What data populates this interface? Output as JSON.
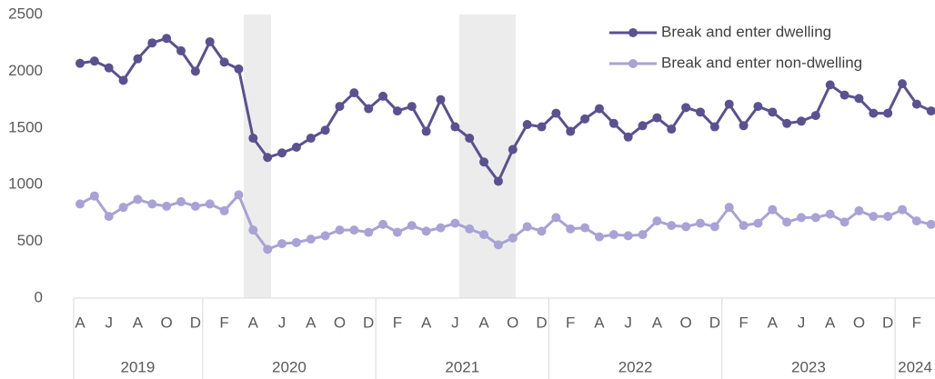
{
  "chart_data": {
    "type": "line",
    "categories": [
      "A",
      null,
      "J",
      null,
      "A",
      null,
      "O",
      null,
      "D",
      null,
      "F",
      null,
      "A",
      null,
      "J",
      null,
      "A",
      null,
      "O",
      null,
      "D",
      null,
      "F",
      null,
      "A",
      null,
      "J",
      null,
      "A",
      null,
      "O",
      null,
      "D",
      null,
      "F",
      null,
      "A",
      null,
      "J",
      null,
      "A",
      null,
      "O",
      null,
      "D",
      null,
      "F",
      null,
      "A",
      null,
      "J",
      null,
      "A",
      null,
      "O",
      null,
      "D",
      null,
      "F",
      null
    ],
    "year_groups": [
      {
        "label": "2019",
        "span": 9
      },
      {
        "label": "2020",
        "span": 12
      },
      {
        "label": "2021",
        "span": 12
      },
      {
        "label": "2022",
        "span": 12
      },
      {
        "label": "2023",
        "span": 12
      },
      {
        "label": "2024",
        "span": 3
      }
    ],
    "series": [
      {
        "name": "Break and enter dwelling",
        "color": "#5a5190",
        "values": [
          2070,
          2090,
          2030,
          1920,
          2110,
          2250,
          2290,
          2180,
          2000,
          2260,
          2080,
          2020,
          1410,
          1240,
          1280,
          1330,
          1410,
          1480,
          1690,
          1810,
          1670,
          1780,
          1650,
          1690,
          1470,
          1750,
          1510,
          1410,
          1200,
          1030,
          1310,
          1530,
          1510,
          1630,
          1470,
          1580,
          1670,
          1540,
          1420,
          1520,
          1590,
          1490,
          1680,
          1640,
          1510,
          1710,
          1520,
          1690,
          1640,
          1540,
          1560,
          1610,
          1880,
          1790,
          1760,
          1630,
          1630,
          1890,
          1710,
          1650
        ]
      },
      {
        "name": "Break and enter non-dwelling",
        "color": "#a9a2d6",
        "values": [
          830,
          900,
          720,
          800,
          870,
          830,
          810,
          850,
          810,
          830,
          770,
          910,
          600,
          430,
          480,
          490,
          520,
          550,
          600,
          600,
          580,
          650,
          580,
          640,
          590,
          620,
          660,
          610,
          560,
          470,
          530,
          630,
          590,
          710,
          610,
          620,
          540,
          560,
          550,
          560,
          680,
          640,
          630,
          660,
          630,
          800,
          640,
          660,
          780,
          670,
          710,
          710,
          740,
          670,
          770,
          720,
          720,
          780,
          680,
          650
        ]
      }
    ],
    "ylim": [
      0,
      2500
    ],
    "yticks": [
      0,
      500,
      1000,
      1500,
      2000,
      2500
    ],
    "legend": "top-right"
  }
}
